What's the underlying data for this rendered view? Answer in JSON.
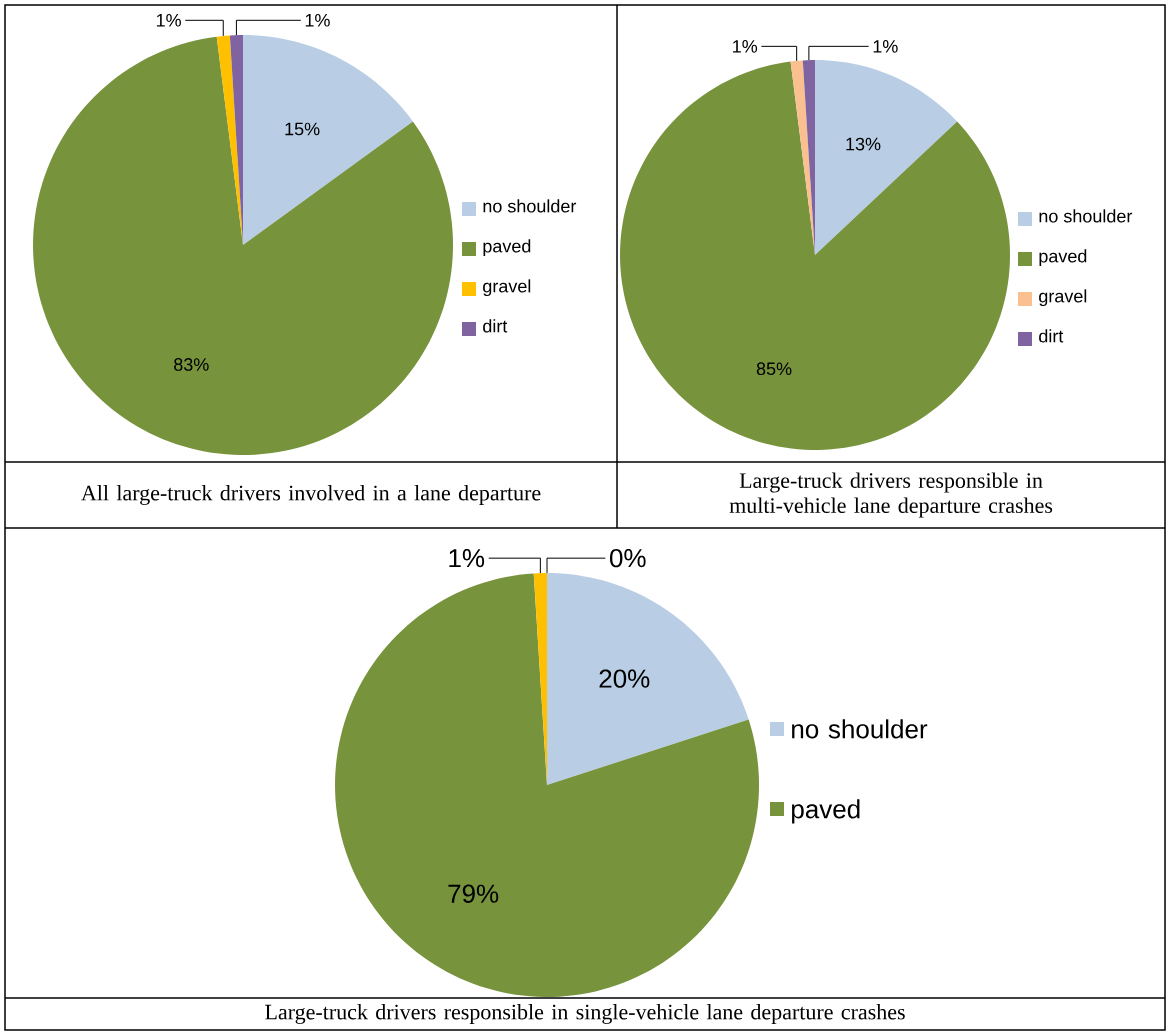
{
  "chart_data": [
    {
      "type": "pie",
      "title": "All large-truck drivers involved in a lane departure",
      "categories": [
        "no shoulder",
        "paved",
        "gravel",
        "dirt"
      ],
      "values": [
        15,
        83,
        1,
        1
      ],
      "value_labels": [
        "15%",
        "83%",
        "1%",
        "1%"
      ],
      "colors": [
        "#b9cde5",
        "#77933c",
        "#ffc000",
        "#8064a2"
      ],
      "legend": "right"
    },
    {
      "type": "pie",
      "title": "Large-truck drivers responsible in multi-vehicle lane departure crashes",
      "categories": [
        "no shoulder",
        "paved",
        "gravel",
        "dirt"
      ],
      "values": [
        13,
        85,
        1,
        1
      ],
      "value_labels": [
        "13%",
        "85%",
        "1%",
        "1%"
      ],
      "colors": [
        "#b9cde5",
        "#77933c",
        "#fac090",
        "#8064a2"
      ],
      "legend": "right"
    },
    {
      "type": "pie",
      "title": "Large-truck drivers responsible in single-vehicle lane departure crashes",
      "categories": [
        "no shoulder",
        "paved",
        null,
        null
      ],
      "values": [
        20,
        79,
        1,
        0
      ],
      "value_labels": [
        "20%",
        "79%",
        "1%",
        "0%"
      ],
      "colors": [
        "#b9cde5",
        "#77933c",
        "#ffc000",
        "#8064a2"
      ],
      "legend": "right"
    }
  ]
}
